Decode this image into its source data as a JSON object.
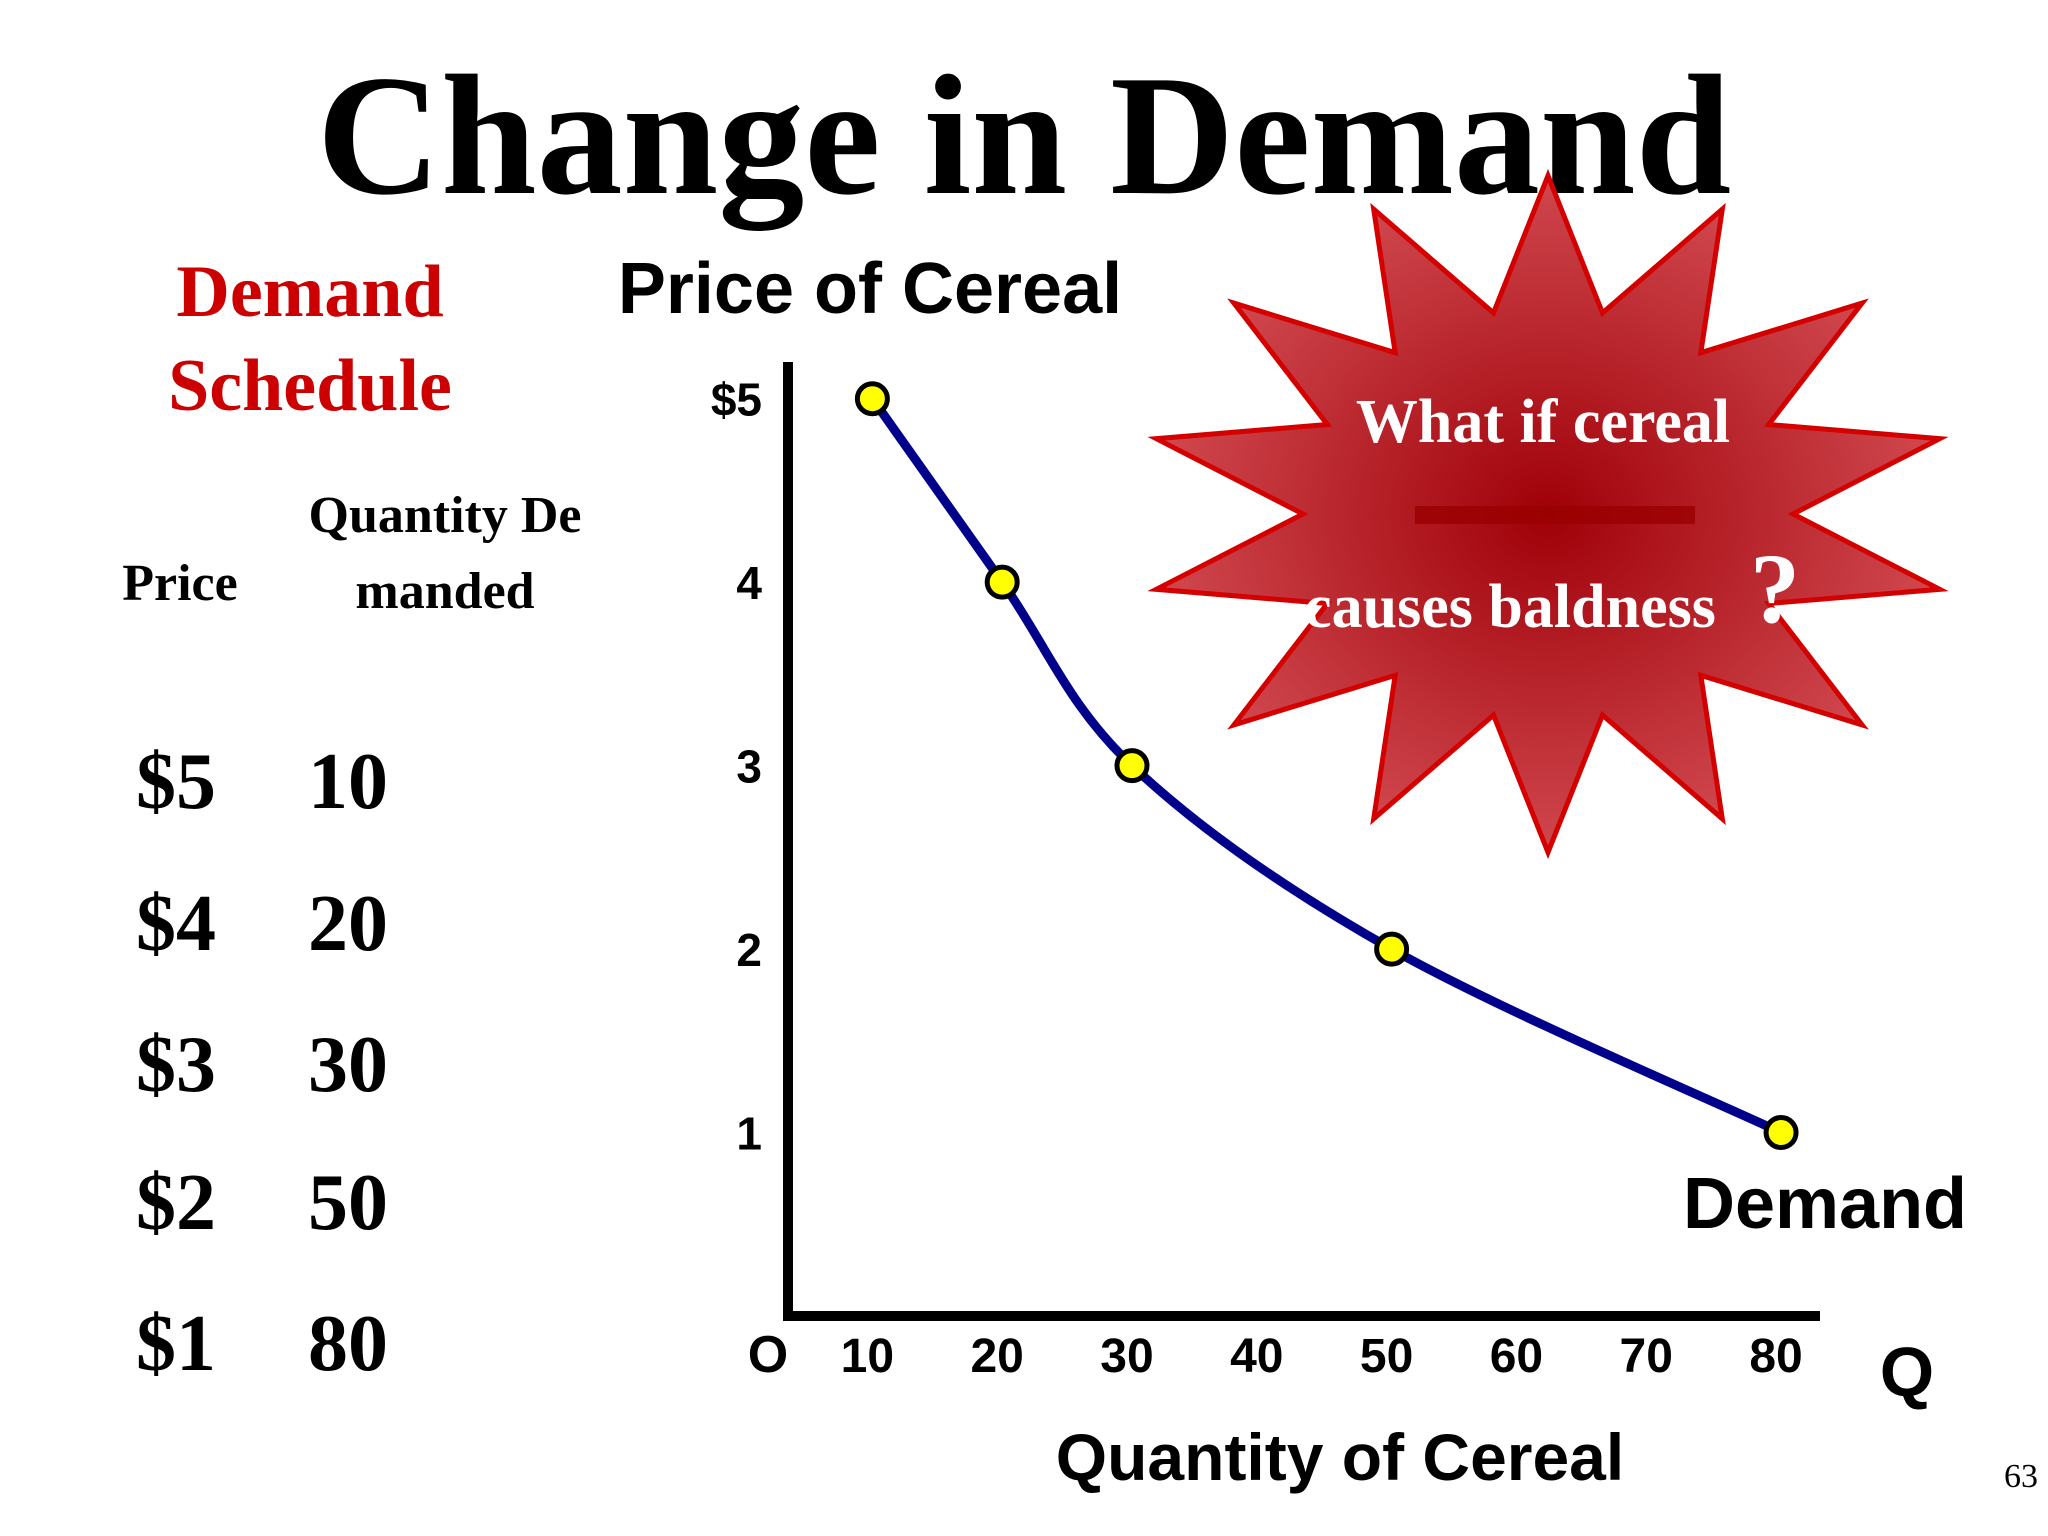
{
  "title": "Change in Demand",
  "schedule": {
    "title_line1": "Demand",
    "title_line2": "Schedule",
    "price_header": "Price",
    "quantity_header": "Quantity Demanded",
    "rows": [
      {
        "price": "$5",
        "quantity": "10"
      },
      {
        "price": "$4",
        "quantity": "20"
      },
      {
        "price": "$3",
        "quantity": "30"
      },
      {
        "price": "$2",
        "quantity": "50"
      },
      {
        "price": "$1",
        "quantity": "80"
      }
    ]
  },
  "callout": {
    "line1": "What if cereal",
    "line2": "causes baldness",
    "mark": "?"
  },
  "page_number": "63",
  "colors": {
    "schedule_title": "#cc0000",
    "curve": "#00008b",
    "points": "#ffff00",
    "burst_fill": "#c0393f",
    "burst_stroke": "#d40000"
  },
  "chart_data": {
    "type": "line",
    "ylabel": "Price of Cereal",
    "xlabel": "Quantity of Cereal",
    "origin_label": "O",
    "x_axis_end_label": "Q",
    "series": [
      {
        "name": "Demand",
        "x": [
          10,
          20,
          30,
          50,
          80
        ],
        "y": [
          5,
          4,
          3,
          2,
          1
        ]
      }
    ],
    "x_ticks": [
      {
        "value": 10,
        "label": "10"
      },
      {
        "value": 20,
        "label": "20"
      },
      {
        "value": 30,
        "label": "30"
      },
      {
        "value": 40,
        "label": "40"
      },
      {
        "value": 50,
        "label": "50"
      },
      {
        "value": 60,
        "label": "60"
      },
      {
        "value": 70,
        "label": "70"
      },
      {
        "value": 80,
        "label": "80"
      }
    ],
    "y_ticks": [
      {
        "value": 1,
        "label": "1"
      },
      {
        "value": 2,
        "label": "2"
      },
      {
        "value": 3,
        "label": "3"
      },
      {
        "value": 4,
        "label": "4"
      },
      {
        "value": 5,
        "label": "$5"
      }
    ],
    "xlim": [
      3.5,
      83
    ],
    "ylim": [
      0,
      5.2
    ],
    "grid": false,
    "legend": "none"
  }
}
